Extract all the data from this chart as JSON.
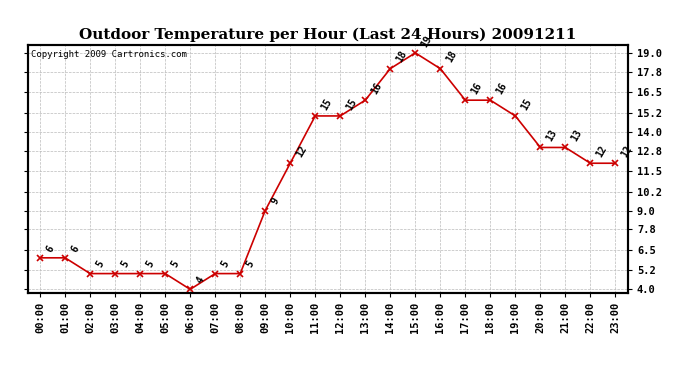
{
  "title": "Outdoor Temperature per Hour (Last 24 Hours) 20091211",
  "copyright": "Copyright 2009 Cartronics.com",
  "hours": [
    "00:00",
    "01:00",
    "02:00",
    "03:00",
    "04:00",
    "05:00",
    "06:00",
    "07:00",
    "08:00",
    "09:00",
    "10:00",
    "11:00",
    "12:00",
    "13:00",
    "14:00",
    "15:00",
    "16:00",
    "17:00",
    "18:00",
    "19:00",
    "20:00",
    "21:00",
    "22:00",
    "23:00"
  ],
  "values": [
    6,
    6,
    5,
    5,
    5,
    5,
    4,
    5,
    5,
    9,
    12,
    15,
    15,
    16,
    18,
    19,
    18,
    16,
    16,
    15,
    13,
    13,
    12,
    12
  ],
  "line_color": "#cc0000",
  "marker_color": "#cc0000",
  "bg_color": "#ffffff",
  "grid_color": "#bbbbbb",
  "ylim_min": 4.0,
  "ylim_max": 19.0,
  "yticks": [
    4.0,
    5.2,
    6.5,
    7.8,
    9.0,
    10.2,
    11.5,
    12.8,
    14.0,
    15.2,
    16.5,
    17.8,
    19.0
  ],
  "title_fontsize": 11,
  "label_fontsize": 7,
  "tick_fontsize": 7.5,
  "copyright_fontsize": 6.5
}
